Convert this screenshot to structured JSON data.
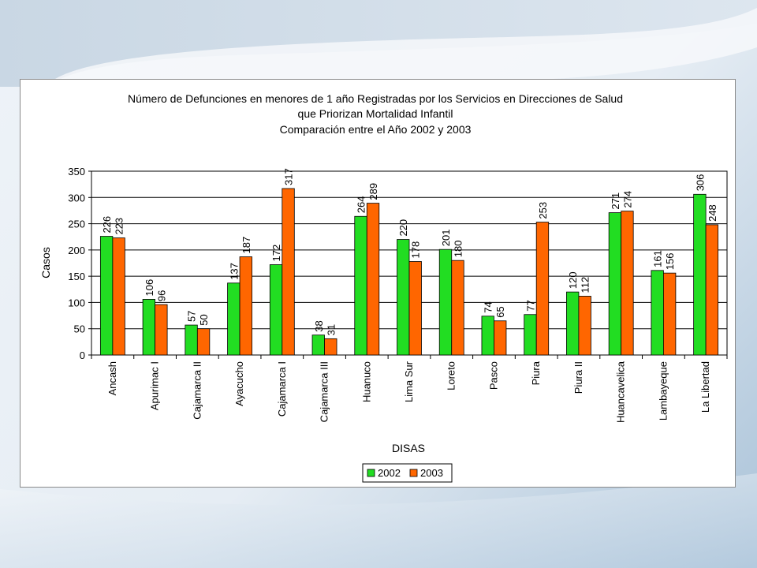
{
  "colors": {
    "s2002": "#22dd22",
    "s2003": "#ff6600",
    "grid": "#000000",
    "plot_bg": "#ffffff"
  },
  "chart_data": {
    "type": "bar",
    "title": [
      "Número de Defunciones en menores de 1 año Registradas por los Servicios en Direcciones de Salud",
      "que Priorizan Mortalidad Infantil",
      "Comparación entre el Año 2002 y  2003"
    ],
    "xlabel": "DISAS",
    "ylabel": "Casos",
    "ylim": [
      0,
      350
    ],
    "yticks": [
      0,
      50,
      100,
      150,
      200,
      250,
      300,
      350
    ],
    "grid": true,
    "legend_position": "bottom",
    "categories": [
      "Ancash",
      "Apurimac I",
      "Cajamarca II",
      "Ayacucho",
      "Cajamarca I",
      "Cajamarca III",
      "Huanuco",
      "Lima Sur",
      "Loreto",
      "Pasco",
      "Piura",
      "Piura II",
      "Huancavelica",
      "Lambayeque",
      "La Libertad"
    ],
    "series": [
      {
        "name": "2002",
        "values": [
          226,
          106,
          57,
          137,
          172,
          38,
          264,
          220,
          201,
          74,
          77,
          120,
          271,
          161,
          306
        ]
      },
      {
        "name": "2003",
        "values": [
          223,
          96,
          50,
          187,
          317,
          31,
          289,
          178,
          180,
          65,
          253,
          112,
          274,
          156,
          248
        ]
      }
    ]
  }
}
